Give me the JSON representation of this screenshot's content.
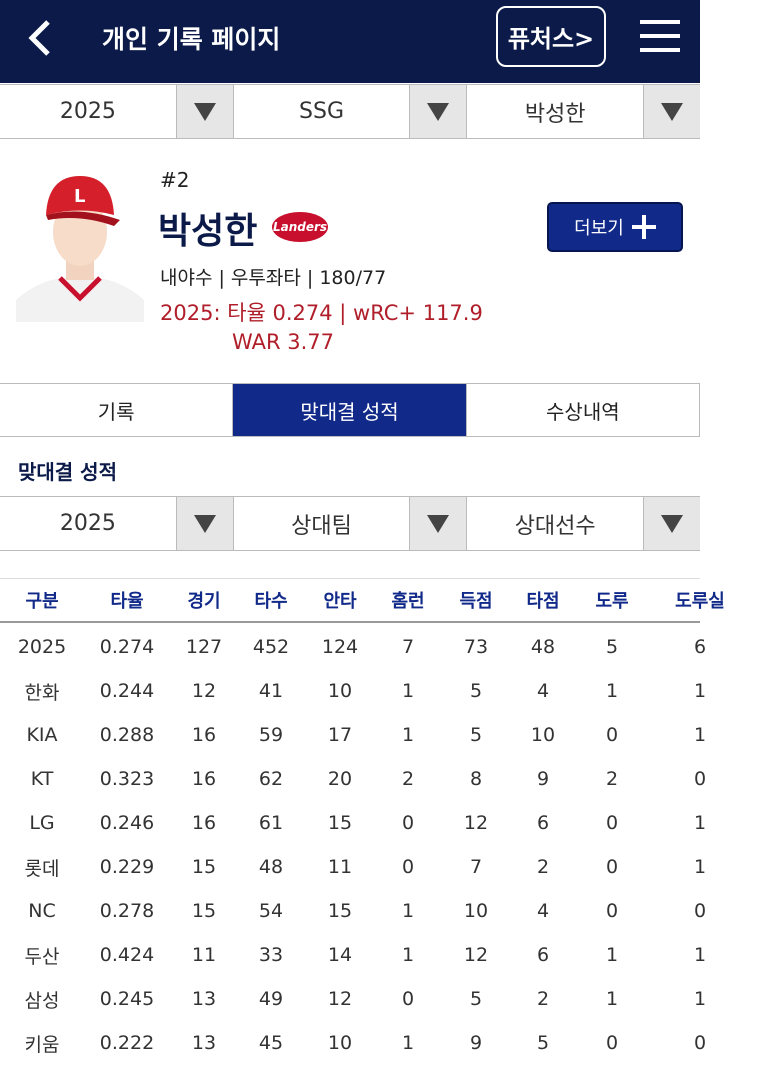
{
  "header": {
    "title": "개인 기록 페이지",
    "futures_button": "퓨처스>"
  },
  "filters": {
    "year": "2025",
    "team": "SSG",
    "player": "박성한"
  },
  "profile": {
    "number": "#2",
    "name": "박성한",
    "logo_text": "Landers",
    "info": "내야수 | 우투좌타 | 180/77",
    "stat_line_1": "2025: 타율 0.274 | wRC+ 117.9",
    "stat_line_2": "WAR 3.77",
    "more_button": "더보기"
  },
  "tabs": [
    "기록",
    "맞대결 성적",
    "수상내역"
  ],
  "section_title": "맞대결 성적",
  "matchup_filters": {
    "year": "2025",
    "opponent_team": "상대팀",
    "opponent_player": "상대선수"
  },
  "table": {
    "columns": [
      "구분",
      "타율",
      "경기",
      "타수",
      "안타",
      "홈런",
      "득점",
      "타점",
      "도루",
      "도루실"
    ],
    "rows": [
      [
        "2025",
        "0.274",
        "127",
        "452",
        "124",
        "7",
        "73",
        "48",
        "5",
        "6"
      ],
      [
        "한화",
        "0.244",
        "12",
        "41",
        "10",
        "1",
        "5",
        "4",
        "1",
        "1"
      ],
      [
        "KIA",
        "0.288",
        "16",
        "59",
        "17",
        "1",
        "5",
        "10",
        "0",
        "1"
      ],
      [
        "KT",
        "0.323",
        "16",
        "62",
        "20",
        "2",
        "8",
        "9",
        "2",
        "0"
      ],
      [
        "LG",
        "0.246",
        "16",
        "61",
        "15",
        "0",
        "12",
        "6",
        "0",
        "1"
      ],
      [
        "롯데",
        "0.229",
        "15",
        "48",
        "11",
        "0",
        "7",
        "2",
        "0",
        "1"
      ],
      [
        "NC",
        "0.278",
        "15",
        "54",
        "15",
        "1",
        "10",
        "4",
        "0",
        "0"
      ],
      [
        "두산",
        "0.424",
        "11",
        "33",
        "14",
        "1",
        "12",
        "6",
        "1",
        "1"
      ],
      [
        "삼성",
        "0.245",
        "13",
        "49",
        "12",
        "0",
        "5",
        "2",
        "1",
        "1"
      ],
      [
        "키움",
        "0.222",
        "13",
        "45",
        "10",
        "1",
        "9",
        "5",
        "0",
        "0"
      ]
    ]
  }
}
